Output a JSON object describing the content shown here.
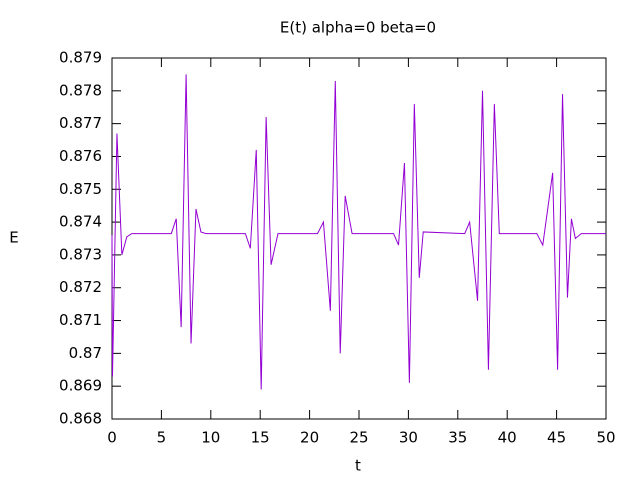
{
  "chart_data": {
    "type": "line",
    "title": "E(t) alpha=0 beta=0",
    "xlabel": "t",
    "ylabel": "E",
    "xlim": [
      0,
      50
    ],
    "xticks": [
      0,
      5,
      10,
      15,
      20,
      25,
      30,
      35,
      40,
      45,
      50
    ],
    "ylim": [
      0.868,
      0.879
    ],
    "yticks": [
      0.868,
      0.869,
      0.87,
      0.871,
      0.872,
      0.873,
      0.874,
      0.875,
      0.876,
      0.877,
      0.878,
      0.879
    ],
    "grid": false,
    "series": [
      {
        "color": "#9400d3",
        "x": [
          0,
          0.05,
          0.5,
          1,
          1.5,
          2,
          6,
          6.5,
          7,
          7.5,
          8,
          8.5,
          9,
          9.5,
          13.5,
          14,
          14.6,
          15.1,
          15.6,
          16.1,
          16.8,
          20.8,
          21.4,
          22.1,
          22.6,
          23.1,
          23.6,
          24.3,
          28.5,
          29,
          29.6,
          30.1,
          30.6,
          31.1,
          31.5,
          35.7,
          36.2,
          37,
          37.5,
          38.1,
          38.7,
          39.2,
          43,
          43.6,
          44.6,
          45.1,
          45.6,
          46.1,
          46.5,
          46.9,
          47.5,
          50
        ],
        "values": [
          0.8736,
          0.8693,
          0.8767,
          0.873,
          0.87355,
          0.87365,
          0.87365,
          0.8741,
          0.8708,
          0.8785,
          0.8703,
          0.8744,
          0.8737,
          0.87365,
          0.87365,
          0.8732,
          0.8762,
          0.8689,
          0.8772,
          0.8727,
          0.87365,
          0.87365,
          0.874,
          0.8713,
          0.8783,
          0.87,
          0.8748,
          0.87365,
          0.87365,
          0.8733,
          0.8758,
          0.8691,
          0.8776,
          0.8723,
          0.8737,
          0.87365,
          0.874,
          0.8716,
          0.878,
          0.8695,
          0.8776,
          0.87365,
          0.87365,
          0.8733,
          0.8755,
          0.8695,
          0.8779,
          0.8717,
          0.8741,
          0.8735,
          0.87365,
          0.87365
        ]
      }
    ]
  }
}
